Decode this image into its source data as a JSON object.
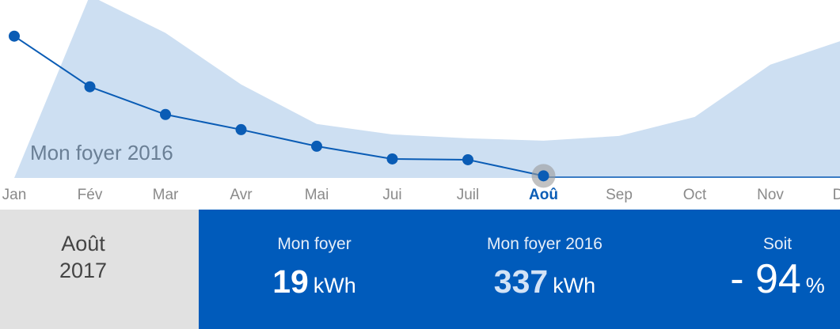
{
  "chart_data": {
    "type": "area-line",
    "categories": [
      "Jan",
      "Fév",
      "Mar",
      "Avr",
      "Mai",
      "Jui",
      "Juil",
      "Aoû",
      "Sep",
      "Oct",
      "Nov",
      "Déc"
    ],
    "series": [
      {
        "name": "Mon foyer 2016",
        "color": "#cddff2",
        "values": [
          0,
          1650,
          1312,
          846,
          488,
          394,
          359,
          337,
          380,
          552,
          1025,
          1255
        ]
      },
      {
        "color": "#0a5cb5",
        "values": [
          1283,
          825,
          574,
          437,
          287,
          172,
          165,
          19,
          null,
          null,
          null,
          null
        ]
      }
    ],
    "ylim": [
      0,
      1610
    ],
    "selected_index": 7
  },
  "summary": {
    "period": {
      "month": "Août",
      "year": "2017"
    },
    "stats": [
      {
        "label": "Mon foyer",
        "value": 19,
        "unit": "kWh"
      },
      {
        "label": "Mon foyer 2016",
        "value": 337,
        "unit": "kWh"
      },
      {
        "label": "Soit",
        "value": "- 94",
        "unit": "%"
      }
    ]
  }
}
